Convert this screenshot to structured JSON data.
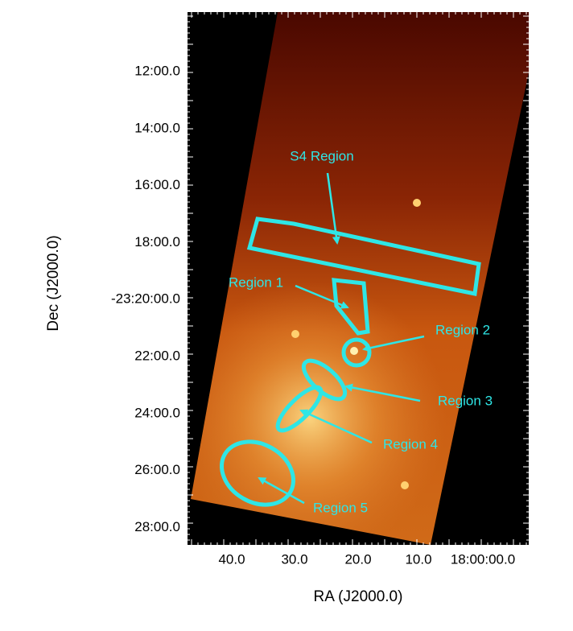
{
  "image": {
    "x_label": "RA (J2000.0)",
    "y_label": "Dec (J2000.0)",
    "x_tick_labels": [
      "40.0",
      "30.0",
      "20.0",
      "10.0",
      "18:00:00.0"
    ],
    "y_tick_labels": [
      "12:00.0",
      "14:00.0",
      "16:00.0",
      "18:00.0",
      "-23:20:00.0",
      "22:00.0",
      "24:00.0",
      "26:00.0",
      "28:00.0"
    ],
    "regions": [
      "S4 Region",
      "Region 1",
      "Region 2",
      "Region 3",
      "Region 4",
      "Region 5"
    ]
  }
}
